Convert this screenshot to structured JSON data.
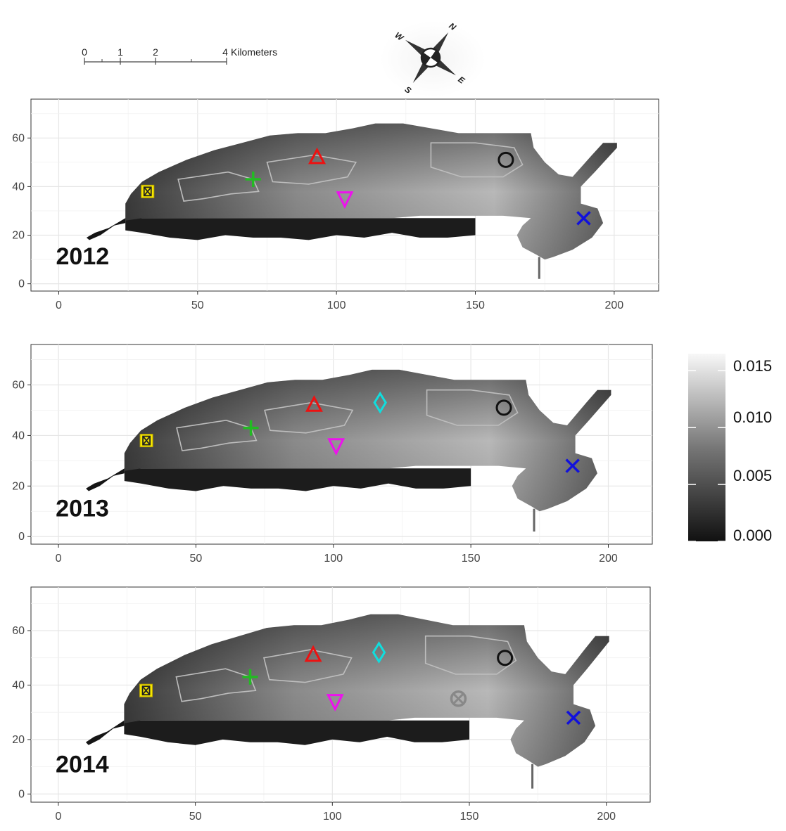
{
  "scale_bar": {
    "tick_labels": [
      "0",
      "1",
      "2",
      "4"
    ],
    "tick_values_km": [
      0,
      1,
      2,
      4
    ],
    "unit": "Kilometers"
  },
  "compass": {
    "icon": "compass-rose-icon",
    "letters": [
      "N",
      "E",
      "S",
      "W"
    ]
  },
  "colorbar": {
    "tick_labels": [
      "0.015",
      "0.010",
      "0.005",
      "0.000"
    ],
    "tick_values": [
      0.015,
      0.01,
      0.005,
      0.0
    ],
    "min": 0.0,
    "max": 0.0165,
    "palette": [
      "#111111",
      "#f8f8f8"
    ]
  },
  "panels": [
    {
      "year": "2012",
      "x_ticks": [
        "0",
        "50",
        "100",
        "150",
        "200"
      ],
      "y_ticks": [
        "0",
        "20",
        "40",
        "60"
      ],
      "xlim": [
        -10,
        216
      ],
      "ylim": [
        -3,
        76
      ],
      "markers": [
        {
          "shape": "square-x",
          "color": "#f5e600",
          "x": 32,
          "y": 38
        },
        {
          "shape": "plus",
          "color": "#22bb22",
          "x": 70,
          "y": 43
        },
        {
          "shape": "triangle-up",
          "color": "#ee1111",
          "x": 93,
          "y": 52
        },
        {
          "shape": "triangle-down",
          "color": "#ee11ee",
          "x": 103,
          "y": 35
        },
        {
          "shape": "circle",
          "color": "#111111",
          "x": 161,
          "y": 51
        },
        {
          "shape": "x",
          "color": "#1111dd",
          "x": 189,
          "y": 27
        }
      ]
    },
    {
      "year": "2013",
      "x_ticks": [
        "0",
        "50",
        "100",
        "150",
        "200"
      ],
      "y_ticks": [
        "0",
        "20",
        "40",
        "60"
      ],
      "xlim": [
        -10,
        216
      ],
      "ylim": [
        -3,
        76
      ],
      "markers": [
        {
          "shape": "square-x",
          "color": "#f5e600",
          "x": 32,
          "y": 38
        },
        {
          "shape": "plus",
          "color": "#22bb22",
          "x": 70,
          "y": 43
        },
        {
          "shape": "triangle-up",
          "color": "#ee1111",
          "x": 93,
          "y": 52
        },
        {
          "shape": "triangle-down",
          "color": "#ee11ee",
          "x": 101,
          "y": 36
        },
        {
          "shape": "diamond",
          "color": "#11dddd",
          "x": 117,
          "y": 53
        },
        {
          "shape": "circle",
          "color": "#111111",
          "x": 162,
          "y": 51
        },
        {
          "shape": "x",
          "color": "#1111dd",
          "x": 187,
          "y": 28
        }
      ]
    },
    {
      "year": "2014",
      "x_ticks": [
        "0",
        "50",
        "100",
        "150",
        "200"
      ],
      "y_ticks": [
        "0",
        "20",
        "40",
        "60"
      ],
      "xlim": [
        -10,
        216
      ],
      "ylim": [
        -3,
        76
      ],
      "markers": [
        {
          "shape": "square-x",
          "color": "#f5e600",
          "x": 32,
          "y": 38
        },
        {
          "shape": "plus",
          "color": "#22bb22",
          "x": 70,
          "y": 43
        },
        {
          "shape": "triangle-up",
          "color": "#ee1111",
          "x": 93,
          "y": 51
        },
        {
          "shape": "triangle-down",
          "color": "#ee11ee",
          "x": 101,
          "y": 34
        },
        {
          "shape": "diamond",
          "color": "#11dddd",
          "x": 117,
          "y": 52
        },
        {
          "shape": "circle-x",
          "color": "#888888",
          "x": 146,
          "y": 35
        },
        {
          "shape": "circle",
          "color": "#111111",
          "x": 163,
          "y": 50
        },
        {
          "shape": "x",
          "color": "#1111dd",
          "x": 188,
          "y": 28
        }
      ]
    }
  ]
}
